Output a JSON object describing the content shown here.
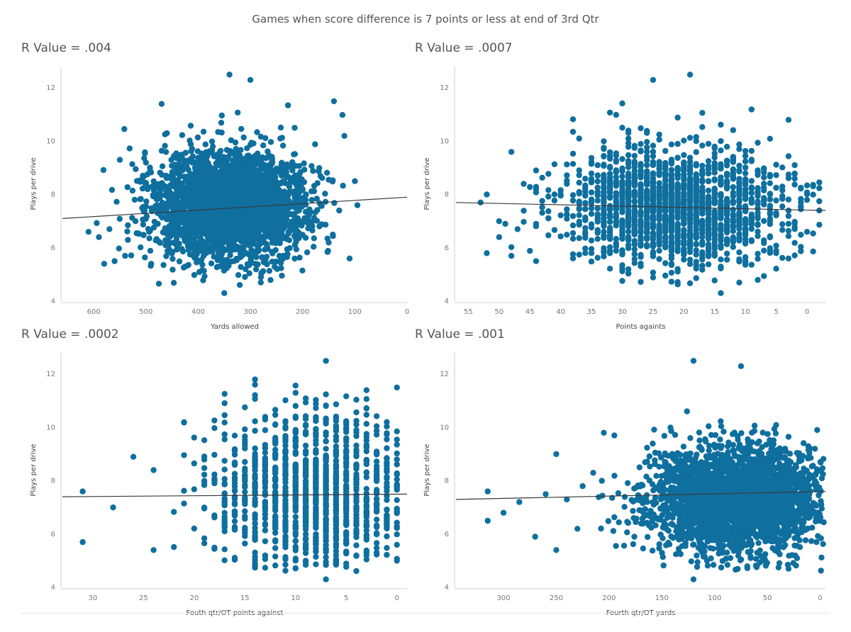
{
  "title": "Games when score difference is 7 points or less at end of 3rd Qtr",
  "colors": {
    "points": "#0f6f9e",
    "trend": "#3a3a3a",
    "axis": "#cfcfcf",
    "text": "#555555"
  },
  "chart_data": [
    {
      "type": "scatter",
      "r_label": "R Value = .004",
      "xlabel": "Yards allowed",
      "ylabel": "Plays per drive",
      "x_reversed": true,
      "xlim": [
        660,
        0
      ],
      "ylim": [
        4,
        12.8
      ],
      "xticks": [
        600,
        500,
        400,
        300,
        200,
        100,
        0
      ],
      "yticks": [
        4,
        6,
        8,
        10,
        12
      ],
      "trend": {
        "x": [
          660,
          0
        ],
        "y": [
          7.1,
          7.9
        ]
      },
      "cluster": {
        "center_x": 340,
        "center_y": 7.6,
        "spread_x": 70,
        "spread_y": 1.0,
        "count": 3000,
        "seed": 11,
        "x_step": 0
      },
      "points": [
        {
          "x": 610,
          "y": 6.6
        },
        {
          "x": 590,
          "y": 6.4
        },
        {
          "x": 580,
          "y": 5.4
        },
        {
          "x": 570,
          "y": 6.7
        },
        {
          "x": 560,
          "y": 5.5
        },
        {
          "x": 550,
          "y": 9.3
        },
        {
          "x": 540,
          "y": 5.7
        },
        {
          "x": 520,
          "y": 7.0
        },
        {
          "x": 505,
          "y": 7.5
        },
        {
          "x": 500,
          "y": 9.2
        },
        {
          "x": 490,
          "y": 5.4
        },
        {
          "x": 470,
          "y": 11.4
        },
        {
          "x": 460,
          "y": 10.3
        },
        {
          "x": 340,
          "y": 12.5
        },
        {
          "x": 300,
          "y": 12.3
        },
        {
          "x": 140,
          "y": 11.5
        },
        {
          "x": 120,
          "y": 10.2
        },
        {
          "x": 110,
          "y": 5.6
        },
        {
          "x": 100,
          "y": 8.5
        },
        {
          "x": 95,
          "y": 7.6
        },
        {
          "x": 350,
          "y": 4.3
        },
        {
          "x": 280,
          "y": 4.7
        },
        {
          "x": 130,
          "y": 7.4
        },
        {
          "x": 150,
          "y": 6.2
        }
      ]
    },
    {
      "type": "scatter",
      "r_label": "R Value = .0007",
      "xlabel": "Points againts",
      "ylabel": "Plays per drive",
      "x_reversed": true,
      "xlim": [
        57,
        -3
      ],
      "ylim": [
        4,
        12.8
      ],
      "xticks": [
        55,
        50,
        45,
        40,
        35,
        30,
        25,
        20,
        15,
        10,
        5,
        0
      ],
      "yticks": [
        4,
        6,
        8,
        10,
        12
      ],
      "trend": {
        "x": [
          57,
          -3
        ],
        "y": [
          7.7,
          7.4
        ]
      },
      "cluster": {
        "center_x": 21,
        "center_y": 7.5,
        "spread_x": 9,
        "spread_y": 1.1,
        "count": 1700,
        "seed": 23,
        "x_step": 1
      },
      "points": [
        {
          "x": 53,
          "y": 7.7
        },
        {
          "x": 52,
          "y": 8.0
        },
        {
          "x": 50,
          "y": 7.0
        },
        {
          "x": 49,
          "y": 6.9
        },
        {
          "x": 48,
          "y": 9.6
        },
        {
          "x": 48,
          "y": 5.7
        },
        {
          "x": 46,
          "y": 8.4
        },
        {
          "x": 44,
          "y": 5.5
        },
        {
          "x": 52,
          "y": 5.8
        },
        {
          "x": 50,
          "y": 6.4
        },
        {
          "x": 3,
          "y": 10.8
        },
        {
          "x": 2,
          "y": 8.6
        },
        {
          "x": 1,
          "y": 7.7
        },
        {
          "x": 0,
          "y": 7.8
        },
        {
          "x": 0,
          "y": 6.6
        },
        {
          "x": 19,
          "y": 12.5
        },
        {
          "x": 25,
          "y": 12.3
        },
        {
          "x": 14,
          "y": 4.3
        },
        {
          "x": 3,
          "y": 5.6
        }
      ]
    },
    {
      "type": "scatter",
      "r_label": "R Value = .0002",
      "xlabel": "Fouth qtr/OT points against",
      "ylabel": "Plays per drive",
      "x_reversed": true,
      "xlim": [
        33,
        -1
      ],
      "ylim": [
        4,
        12.8
      ],
      "xticks": [
        30,
        25,
        20,
        15,
        10,
        5,
        0
      ],
      "yticks": [
        4,
        6,
        8,
        10,
        12
      ],
      "trend": {
        "x": [
          33,
          -1
        ],
        "y": [
          7.4,
          7.5
        ]
      },
      "cluster": {
        "center_x": 8,
        "center_y": 7.6,
        "spread_x": 5,
        "spread_y": 1.5,
        "count": 1300,
        "seed": 37,
        "x_step": 1
      },
      "points": [
        {
          "x": 31,
          "y": 7.6
        },
        {
          "x": 31,
          "y": 5.7
        },
        {
          "x": 28,
          "y": 7.0
        },
        {
          "x": 26,
          "y": 8.9
        },
        {
          "x": 24,
          "y": 8.4
        },
        {
          "x": 24,
          "y": 5.4
        },
        {
          "x": 21,
          "y": 10.2
        },
        {
          "x": 7,
          "y": 12.5
        },
        {
          "x": 7,
          "y": 4.3
        },
        {
          "x": 0,
          "y": 11.5
        },
        {
          "x": 3,
          "y": 11.4
        },
        {
          "x": 0,
          "y": 5.0
        },
        {
          "x": 14,
          "y": 11.8
        },
        {
          "x": 10,
          "y": 11.3
        }
      ]
    },
    {
      "type": "scatter",
      "r_label": "R Value = .001",
      "xlabel": "Fourth qtr/OT yards",
      "ylabel": "Plays per drive",
      "x_reversed": true,
      "xlim": [
        345,
        -5
      ],
      "ylim": [
        4,
        12.8
      ],
      "xticks": [
        300,
        250,
        200,
        150,
        100,
        50,
        0
      ],
      "yticks": [
        4,
        6,
        8,
        10,
        12
      ],
      "trend": {
        "x": [
          345,
          -5
        ],
        "y": [
          7.3,
          7.6
        ]
      },
      "cluster": {
        "center_x": 80,
        "center_y": 7.3,
        "spread_x": 42,
        "spread_y": 1.0,
        "count": 2800,
        "seed": 53,
        "x_step": 0
      },
      "points": [
        {
          "x": 315,
          "y": 7.6
        },
        {
          "x": 315,
          "y": 6.5
        },
        {
          "x": 300,
          "y": 6.8
        },
        {
          "x": 285,
          "y": 7.2
        },
        {
          "x": 260,
          "y": 7.5
        },
        {
          "x": 250,
          "y": 9.0
        },
        {
          "x": 250,
          "y": 5.4
        },
        {
          "x": 240,
          "y": 7.3
        },
        {
          "x": 230,
          "y": 6.2
        },
        {
          "x": 270,
          "y": 5.9
        },
        {
          "x": 225,
          "y": 7.8
        },
        {
          "x": 215,
          "y": 8.3
        },
        {
          "x": 205,
          "y": 9.8
        },
        {
          "x": 195,
          "y": 9.7
        },
        {
          "x": 120,
          "y": 12.5
        },
        {
          "x": 75,
          "y": 12.3
        },
        {
          "x": 120,
          "y": 4.3
        },
        {
          "x": 30,
          "y": 4.7
        },
        {
          "x": 5,
          "y": 9.2
        }
      ]
    }
  ]
}
